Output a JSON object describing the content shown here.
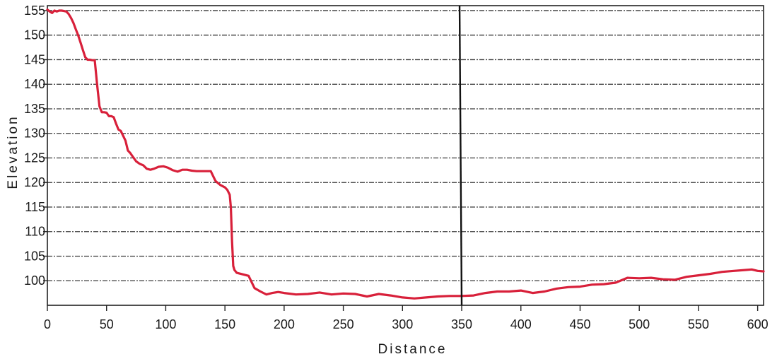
{
  "chart_data": {
    "type": "line",
    "title": "",
    "xlabel": "Distance",
    "ylabel": "Elevation",
    "xlim": [
      0,
      605
    ],
    "ylim": [
      95,
      156
    ],
    "xticks": [
      0,
      50,
      100,
      150,
      200,
      250,
      300,
      350,
      400,
      450,
      500,
      550,
      600
    ],
    "yticks": [
      100,
      105,
      110,
      115,
      120,
      125,
      130,
      135,
      140,
      145,
      150,
      155
    ],
    "grid": true,
    "marker_line_x": 350,
    "series": [
      {
        "name": "",
        "color": "#d8203a",
        "x": [
          0,
          2,
          4,
          6,
          8,
          10,
          12,
          14,
          16,
          18,
          20,
          22,
          24,
          26,
          28,
          30,
          32,
          34,
          36,
          38,
          40,
          42,
          44,
          46,
          48,
          50,
          52,
          54,
          56,
          58,
          60,
          62,
          64,
          66,
          68,
          70,
          72,
          75,
          78,
          81,
          84,
          87,
          90,
          94,
          98,
          102,
          106,
          110,
          114,
          118,
          122,
          126,
          130,
          134,
          138,
          142,
          146,
          150,
          152,
          154,
          155,
          156,
          157,
          158,
          160,
          165,
          170,
          175,
          180,
          185,
          190,
          195,
          200,
          210,
          220,
          230,
          240,
          250,
          260,
          270,
          280,
          290,
          300,
          310,
          320,
          330,
          340,
          350,
          360,
          370,
          380,
          390,
          400,
          410,
          420,
          430,
          440,
          450,
          460,
          470,
          480,
          490,
          500,
          510,
          520,
          530,
          540,
          550,
          560,
          570,
          580,
          590,
          595,
          600,
          605
        ],
        "y": [
          155.2,
          154.8,
          154.5,
          155.0,
          154.8,
          155.0,
          155.0,
          154.9,
          154.8,
          154.3,
          153.5,
          152.5,
          151.2,
          150.0,
          148.5,
          147.0,
          145.5,
          145.0,
          145.0,
          144.9,
          144.9,
          140.0,
          135.5,
          134.3,
          134.3,
          134.2,
          133.5,
          133.5,
          133.3,
          132.0,
          130.8,
          130.5,
          129.5,
          128.5,
          126.5,
          126.0,
          125.3,
          124.3,
          123.8,
          123.5,
          122.8,
          122.6,
          122.8,
          123.2,
          123.3,
          123.0,
          122.5,
          122.2,
          122.6,
          122.6,
          122.4,
          122.3,
          122.3,
          122.3,
          122.3,
          120.3,
          119.5,
          119.0,
          118.5,
          117.5,
          115.0,
          108.0,
          103.0,
          102.2,
          101.6,
          101.3,
          101.0,
          98.5,
          97.8,
          97.2,
          97.5,
          97.7,
          97.5,
          97.2,
          97.3,
          97.6,
          97.2,
          97.4,
          97.3,
          96.8,
          97.3,
          97.0,
          96.6,
          96.4,
          96.6,
          96.8,
          96.9,
          96.9,
          97.0,
          97.5,
          97.8,
          97.8,
          98.0,
          97.5,
          97.8,
          98.4,
          98.7,
          98.8,
          99.2,
          99.3,
          99.6,
          100.6,
          100.5,
          100.6,
          100.3,
          100.2,
          100.8,
          101.1,
          101.4,
          101.8,
          102.0,
          102.2,
          102.3,
          102.0,
          101.9
        ]
      }
    ]
  }
}
